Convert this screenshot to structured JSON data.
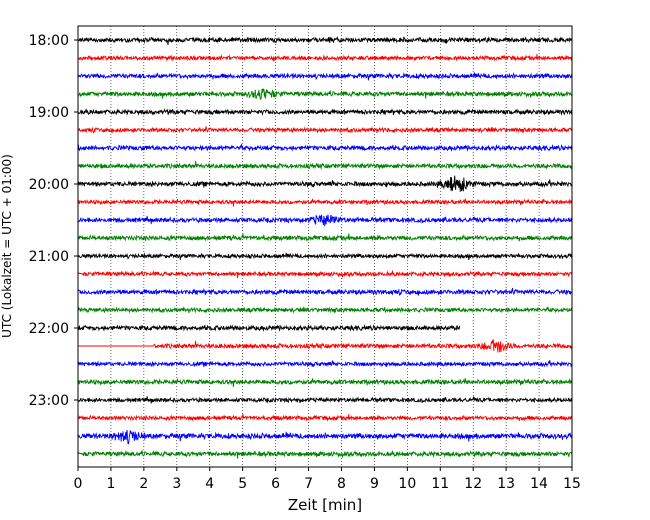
{
  "chart_data": {
    "type": "line",
    "title": "",
    "xlabel": "Zeit  [min]",
    "ylabel": "UTC (Lokalzeit = UTC + 01:00)",
    "xlim": [
      0,
      15
    ],
    "x_ticks": [
      0,
      1,
      2,
      3,
      4,
      5,
      6,
      7,
      8,
      9,
      10,
      11,
      12,
      13,
      14,
      15
    ],
    "x_tick_labels": [
      "0",
      "1",
      "2",
      "3",
      "4",
      "5",
      "6",
      "7",
      "8",
      "9",
      "10",
      "11",
      "12",
      "13",
      "14",
      "15"
    ],
    "y_tick_labels": [
      "18:00",
      "19:00",
      "20:00",
      "21:00",
      "22:00",
      "23:00"
    ],
    "y_tick_rows": [
      0,
      4,
      8,
      12,
      16,
      20
    ],
    "vertical_grid": true,
    "grid_style": "dotted",
    "row_minutes": 15,
    "trace_colors": [
      "#000000",
      "#ff0000",
      "#0000ff",
      "#008000"
    ],
    "traces": [
      {
        "start": "18:00",
        "color": "#000000",
        "x_start": 0,
        "x_end": 15,
        "amplitude": 2.5,
        "bursts": []
      },
      {
        "start": "18:15",
        "color": "#ff0000",
        "x_start": 0,
        "x_end": 15,
        "amplitude": 2.2,
        "bursts": []
      },
      {
        "start": "18:30",
        "color": "#0000ff",
        "x_start": 0,
        "x_end": 15,
        "amplitude": 2.5,
        "bursts": []
      },
      {
        "start": "18:45",
        "color": "#008000",
        "x_start": 0,
        "x_end": 15,
        "amplitude": 2.5,
        "bursts": [
          {
            "t": 5.6,
            "amp": 4
          }
        ]
      },
      {
        "start": "19:00",
        "color": "#000000",
        "x_start": 0,
        "x_end": 15,
        "amplitude": 2.5,
        "bursts": []
      },
      {
        "start": "19:15",
        "color": "#ff0000",
        "x_start": 0,
        "x_end": 15,
        "amplitude": 2.2,
        "bursts": []
      },
      {
        "start": "19:30",
        "color": "#0000ff",
        "x_start": 0,
        "x_end": 15,
        "amplitude": 2.5,
        "bursts": []
      },
      {
        "start": "19:45",
        "color": "#008000",
        "x_start": 0,
        "x_end": 15,
        "amplitude": 2.5,
        "bursts": []
      },
      {
        "start": "20:00",
        "color": "#000000",
        "x_start": 0,
        "x_end": 15,
        "amplitude": 2.5,
        "bursts": [
          {
            "t": 11.5,
            "amp": 7
          }
        ]
      },
      {
        "start": "20:15",
        "color": "#ff0000",
        "x_start": 0,
        "x_end": 15,
        "amplitude": 2.2,
        "bursts": []
      },
      {
        "start": "20:30",
        "color": "#0000ff",
        "x_start": 0,
        "x_end": 15,
        "amplitude": 2.5,
        "bursts": [
          {
            "t": 7.5,
            "amp": 4
          }
        ]
      },
      {
        "start": "20:45",
        "color": "#008000",
        "x_start": 0,
        "x_end": 15,
        "amplitude": 2.5,
        "bursts": []
      },
      {
        "start": "21:00",
        "color": "#000000",
        "x_start": 0,
        "x_end": 15,
        "amplitude": 2.2,
        "bursts": []
      },
      {
        "start": "21:15",
        "color": "#ff0000",
        "x_start": 0,
        "x_end": 15,
        "amplitude": 2.2,
        "bursts": []
      },
      {
        "start": "21:30",
        "color": "#0000ff",
        "x_start": 0,
        "x_end": 15,
        "amplitude": 2.5,
        "bursts": []
      },
      {
        "start": "21:45",
        "color": "#008000",
        "x_start": 0,
        "x_end": 15,
        "amplitude": 2.2,
        "bursts": []
      },
      {
        "start": "22:00",
        "color": "#000000",
        "x_start": 0,
        "x_end": 11.6,
        "amplitude": 2.5,
        "bursts": []
      },
      {
        "start": "22:15",
        "color": "#ff0000",
        "x_start": 0,
        "x_end": 15,
        "gap_start": 2.3,
        "amplitude": 2.5,
        "bursts": [
          {
            "t": 12.7,
            "amp": 5
          }
        ]
      },
      {
        "start": "22:30",
        "color": "#0000ff",
        "x_start": 0,
        "x_end": 15,
        "amplitude": 2.2,
        "bursts": []
      },
      {
        "start": "22:45",
        "color": "#008000",
        "x_start": 0,
        "x_end": 15,
        "amplitude": 2.5,
        "bursts": []
      },
      {
        "start": "23:00",
        "color": "#000000",
        "x_start": 0,
        "x_end": 15,
        "amplitude": 2.2,
        "bursts": []
      },
      {
        "start": "23:15",
        "color": "#ff0000",
        "x_start": 0,
        "x_end": 15,
        "amplitude": 2.2,
        "bursts": []
      },
      {
        "start": "23:30",
        "color": "#0000ff",
        "x_start": 0,
        "x_end": 15,
        "amplitude": 3,
        "bursts": [
          {
            "t": 1.5,
            "amp": 5
          }
        ]
      },
      {
        "start": "23:45",
        "color": "#008000",
        "x_start": 0,
        "x_end": 15,
        "amplitude": 2.5,
        "bursts": []
      }
    ]
  }
}
